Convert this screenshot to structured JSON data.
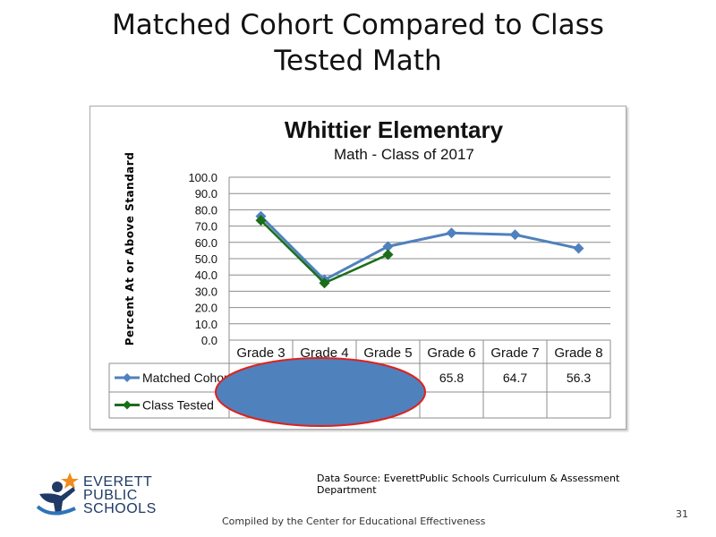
{
  "slide": {
    "title_line1": "Matched Cohort Compared to Class",
    "title_line2": "Tested Math",
    "source_line1": "Data Source: EverettPublic Schools Curriculum & Assessment",
    "source_line2": "Department",
    "compiled": "Compiled by the Center for Educational Effectiveness",
    "page_number": "31"
  },
  "logo": {
    "line1": "EVERETT",
    "line2": "PUBLIC",
    "line3": "SCHOOLS"
  },
  "chart_data": {
    "type": "line",
    "title": "Whittier Elementary",
    "subtitle": "Math - Class of 2017",
    "ylabel": "Percent At or Above Standard",
    "xlabel": "",
    "ylim": [
      0,
      100
    ],
    "ytick_step": 10,
    "ytick_labels": [
      "0.0",
      "10.0",
      "20.0",
      "30.0",
      "40.0",
      "50.0",
      "60.0",
      "70.0",
      "80.0",
      "90.0",
      "100.0"
    ],
    "grid": true,
    "legend": "table-below",
    "categories": [
      "Grade 3",
      "Grade 4",
      "Grade 5",
      "Grade 6",
      "Grade 7",
      "Grade 8"
    ],
    "series": [
      {
        "name": "Matched Cohort",
        "legend_label": "Matched Cohort",
        "color": "#4f81bd",
        "values": [
          76.0,
          37.0,
          57.5,
          65.8,
          64.7,
          56.3
        ],
        "table_values": [
          "",
          "",
          "",
          "65.8",
          "64.7",
          "56.3"
        ]
      },
      {
        "name": "Class Tested",
        "legend_label": "Class Tested",
        "color": "#1a6e1a",
        "values": [
          73.5,
          35.0,
          52.5,
          null,
          null,
          null
        ],
        "table_values": [
          "",
          "",
          "",
          "",
          "",
          ""
        ]
      }
    ],
    "redaction": {
      "fill": "#4f81bd",
      "stroke": "#e0201c"
    }
  }
}
